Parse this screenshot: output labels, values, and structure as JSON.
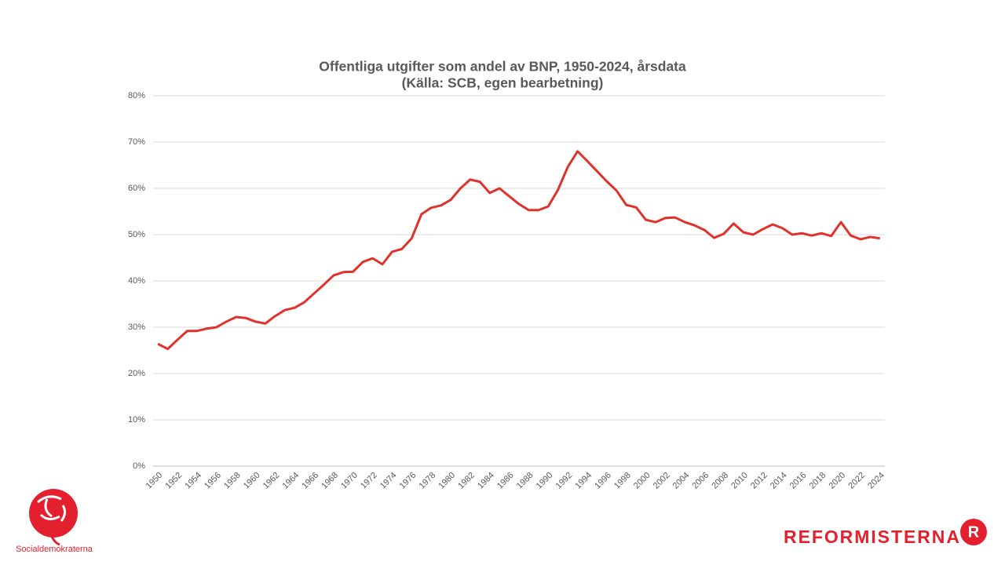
{
  "chart_data": {
    "type": "line",
    "title": "Offentliga utgifter som andel av BNP, 1950-2024, årsdata",
    "subtitle": "(Källa: SCB, egen bearbetning)",
    "x": [
      1950,
      1951,
      1952,
      1953,
      1954,
      1955,
      1956,
      1957,
      1958,
      1959,
      1960,
      1961,
      1962,
      1963,
      1964,
      1965,
      1966,
      1967,
      1968,
      1969,
      1970,
      1971,
      1972,
      1973,
      1974,
      1975,
      1976,
      1977,
      1978,
      1979,
      1980,
      1981,
      1982,
      1983,
      1984,
      1985,
      1986,
      1987,
      1988,
      1989,
      1990,
      1991,
      1992,
      1993,
      1994,
      1995,
      1996,
      1997,
      1998,
      1999,
      2000,
      2001,
      2002,
      2003,
      2004,
      2005,
      2006,
      2007,
      2008,
      2009,
      2010,
      2011,
      2012,
      2013,
      2014,
      2015,
      2016,
      2017,
      2018,
      2019,
      2020,
      2021,
      2022,
      2023,
      2024
    ],
    "xticks": [
      1950,
      1952,
      1954,
      1956,
      1958,
      1960,
      1962,
      1964,
      1966,
      1968,
      1970,
      1972,
      1974,
      1976,
      1978,
      1980,
      1982,
      1984,
      1986,
      1988,
      1990,
      1992,
      1994,
      1996,
      1998,
      2000,
      2002,
      2004,
      2006,
      2008,
      2010,
      2012,
      2014,
      2016,
      2018,
      2020,
      2022,
      2024
    ],
    "series": [
      {
        "color": "#e0312a",
        "values": [
          26.4,
          25.3,
          27.3,
          29.2,
          29.2,
          29.7,
          30.0,
          31.2,
          32.2,
          32.0,
          31.2,
          30.8,
          32.4,
          33.7,
          34.2,
          35.4,
          37.3,
          39.2,
          41.2,
          41.9,
          42.0,
          44.1,
          44.9,
          43.6,
          46.3,
          46.9,
          49.2,
          54.4,
          55.8,
          56.3,
          57.5,
          60.0,
          61.9,
          61.4,
          59.0,
          60.0,
          58.3,
          56.6,
          55.3,
          55.3,
          56.1,
          59.7,
          64.6,
          68.0,
          65.9,
          63.7,
          61.5,
          59.5,
          56.4,
          55.9,
          53.2,
          52.7,
          53.6,
          53.7,
          52.7,
          52.0,
          51.0,
          49.3,
          50.2,
          52.4,
          50.5,
          50.0,
          51.2,
          52.2,
          51.4,
          50.0,
          50.3,
          49.8,
          50.3,
          49.7,
          52.7,
          49.8,
          49.0,
          49.5,
          49.2
        ]
      }
    ],
    "ylim": [
      0,
      80
    ],
    "yticks": [
      {
        "value": 0,
        "label": "0%"
      },
      {
        "value": 10,
        "label": "10%"
      },
      {
        "value": 20,
        "label": "20%"
      },
      {
        "value": 30,
        "label": "30%"
      },
      {
        "value": 40,
        "label": "40%"
      },
      {
        "value": 50,
        "label": "50%"
      },
      {
        "value": 60,
        "label": "60%"
      },
      {
        "value": 70,
        "label": "70%"
      },
      {
        "value": 80,
        "label": "80%"
      }
    ],
    "grid": true
  },
  "logos": {
    "left": "Socialdemokraterna",
    "right": "REFORMISTERNA",
    "badge": "R"
  }
}
